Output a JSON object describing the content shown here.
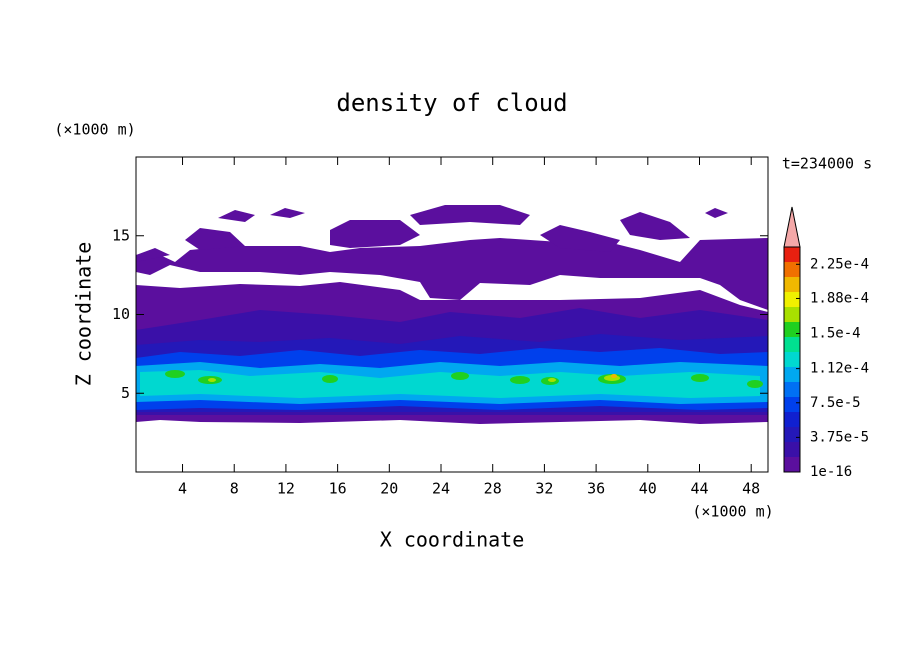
{
  "chart_data": {
    "type": "contour",
    "title": "density of cloud",
    "xlabel": "X coordinate",
    "ylabel": "Z coordinate",
    "x_unit": "(×1000 m)",
    "y_unit": "(×1000 m)",
    "time_label": "t=234000 s",
    "xlim": [
      0.4,
      49.3
    ],
    "ylim": [
      0,
      20
    ],
    "xticks": [
      4,
      8,
      12,
      16,
      20,
      24,
      28,
      32,
      36,
      40,
      44,
      48
    ],
    "yticks": [
      5,
      10,
      15
    ],
    "colorbar": {
      "range": [
        1e-16,
        0.00024375
      ],
      "colors": [
        "#5b0f9e",
        "#3a10a8",
        "#2418b8",
        "#1020d0",
        "#0040ec",
        "#0070f4",
        "#00a8f0",
        "#00d8d0",
        "#00e090",
        "#20d020",
        "#a8e000",
        "#f0f000",
        "#f0b800",
        "#f07000",
        "#e82010"
      ],
      "extend_color": "#f4a8a8",
      "ticks": [
        {
          "value": 1e-16,
          "label": "1e-16"
        },
        {
          "value": 3.75e-05,
          "label": "3.75e-5"
        },
        {
          "value": 7.5e-05,
          "label": "7.5e-5"
        },
        {
          "value": 0.000112,
          "label": "1.12e-4"
        },
        {
          "value": 0.00015,
          "label": "1.5e-4"
        },
        {
          "value": 0.000188,
          "label": "1.88e-4"
        },
        {
          "value": 0.000225,
          "label": "2.25e-4"
        }
      ]
    }
  }
}
